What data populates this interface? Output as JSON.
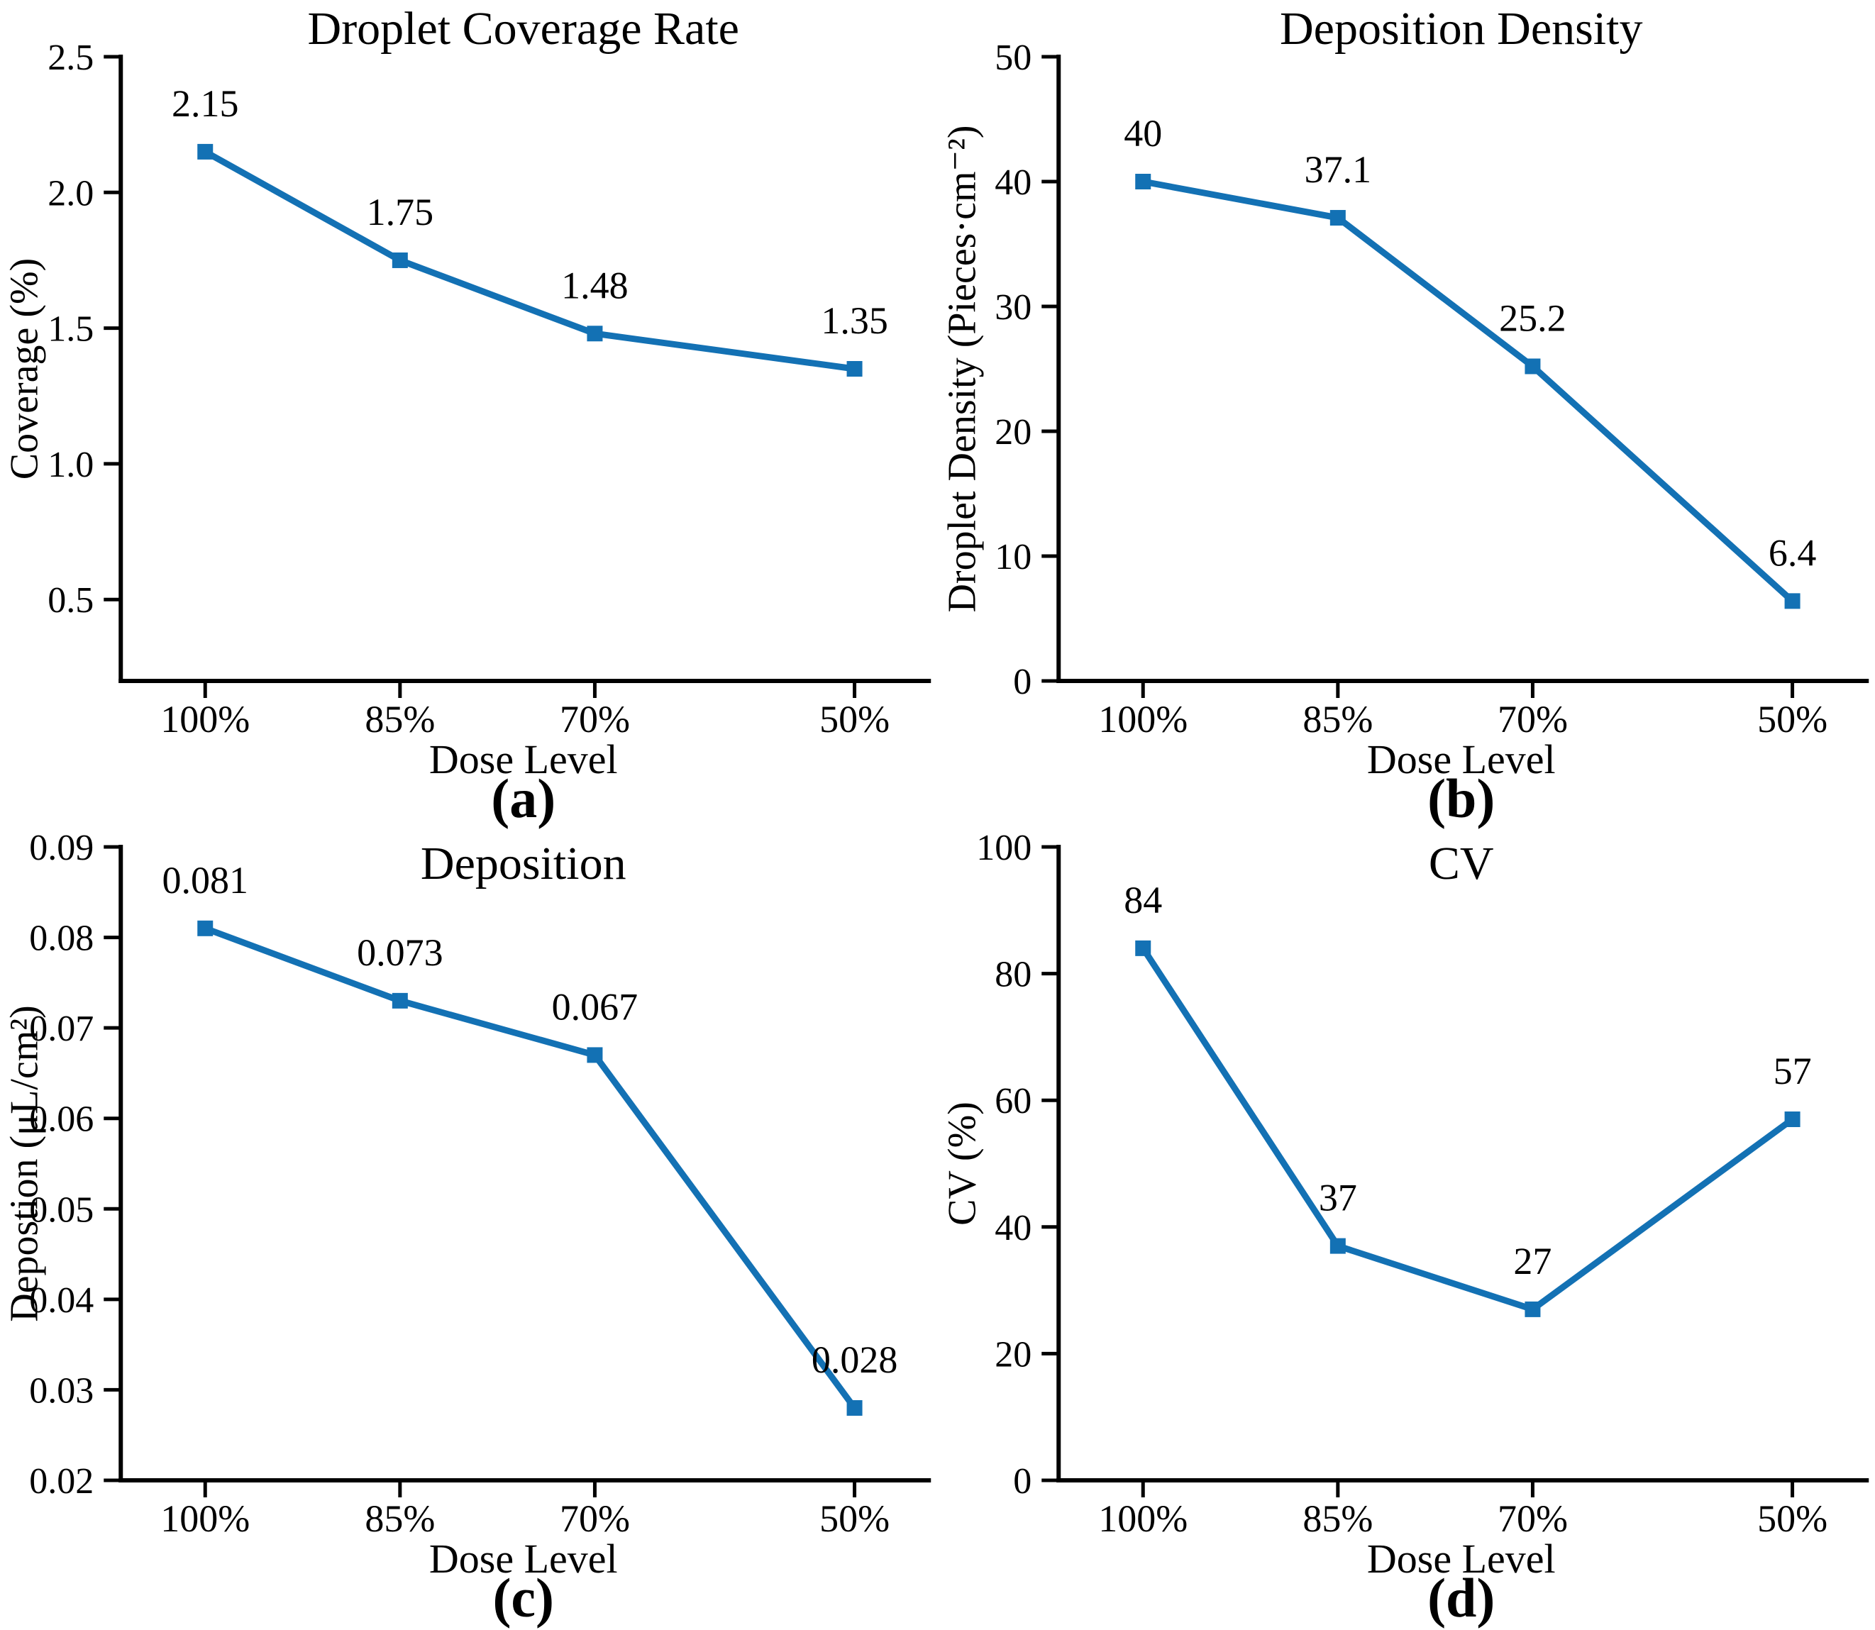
{
  "figure": {
    "background": "#ffffff",
    "series_color": "#1371b4",
    "axis_color": "#000000",
    "text_color": "#000000"
  },
  "chart_data": [
    {
      "id": "a",
      "type": "line",
      "title": "Droplet Coverage Rate",
      "caption": "(a)",
      "xlabel": "Dose Level",
      "ylabel": "Coverage (%)",
      "categories": [
        "100%",
        "85%",
        "70%",
        "50%"
      ],
      "x_numeric": [
        100,
        85,
        70,
        50
      ],
      "values": [
        2.15,
        1.75,
        1.48,
        1.35
      ],
      "point_labels": [
        "2.15",
        "1.75",
        "1.48",
        "1.35"
      ],
      "yticks": [
        0.5,
        1.0,
        1.5,
        2.0,
        2.5
      ],
      "ytick_labels": [
        "0.5",
        "1.0",
        "1.5",
        "2.0",
        "2.5"
      ],
      "ylim": [
        0.2,
        2.5
      ],
      "xlim_dose": [
        106.5,
        44.5
      ],
      "grid": false,
      "legend": "none",
      "marker": "square"
    },
    {
      "id": "b",
      "type": "line",
      "title": "Deposition Density",
      "caption": "(b)",
      "xlabel": "Dose Level",
      "ylabel": "Droplet Density (Pieces·cm⁻²)",
      "categories": [
        "100%",
        "85%",
        "70%",
        "50%"
      ],
      "x_numeric": [
        100,
        85,
        70,
        50
      ],
      "values": [
        40,
        37.1,
        25.2,
        6.4
      ],
      "point_labels": [
        "40",
        "37.1",
        "25.2",
        "6.4"
      ],
      "yticks": [
        0,
        10,
        20,
        30,
        40,
        50
      ],
      "ytick_labels": [
        "0",
        "10",
        "20",
        "30",
        "40",
        "50"
      ],
      "ylim": [
        0,
        50
      ],
      "xlim_dose": [
        106.5,
        44.5
      ],
      "grid": false,
      "legend": "none",
      "marker": "square"
    },
    {
      "id": "c",
      "type": "line",
      "title": "Deposition",
      "caption": "(c)",
      "xlabel": "Dose Level",
      "ylabel": "Depostion (μL/cm²)",
      "categories": [
        "100%",
        "85%",
        "70%",
        "50%"
      ],
      "x_numeric": [
        100,
        85,
        70,
        50
      ],
      "values": [
        0.081,
        0.073,
        0.067,
        0.028
      ],
      "point_labels": [
        "0.081",
        "0.073",
        "0.067",
        "0.028"
      ],
      "yticks": [
        0.02,
        0.03,
        0.04,
        0.05,
        0.06,
        0.07,
        0.08,
        0.09
      ],
      "ytick_labels": [
        "0.02",
        "0.03",
        "0.04",
        "0.05",
        "0.06",
        "0.07",
        "0.08",
        "0.09"
      ],
      "ylim": [
        0.02,
        0.09
      ],
      "xlim_dose": [
        106.5,
        44.5
      ],
      "grid": false,
      "legend": "none",
      "marker": "square"
    },
    {
      "id": "d",
      "type": "line",
      "title": "CV",
      "caption": "(d)",
      "xlabel": "Dose Level",
      "ylabel": "CV  (%)",
      "categories": [
        "100%",
        "85%",
        "70%",
        "50%"
      ],
      "x_numeric": [
        100,
        85,
        70,
        50
      ],
      "values": [
        84,
        37,
        27,
        57
      ],
      "point_labels": [
        "84",
        "37",
        "27",
        "57"
      ],
      "yticks": [
        0,
        20,
        40,
        60,
        80,
        100
      ],
      "ytick_labels": [
        "0",
        "20",
        "40",
        "60",
        "80",
        "100"
      ],
      "ylim": [
        0,
        100
      ],
      "xlim_dose": [
        106.5,
        44.5
      ],
      "grid": false,
      "legend": "none",
      "marker": "square"
    }
  ]
}
